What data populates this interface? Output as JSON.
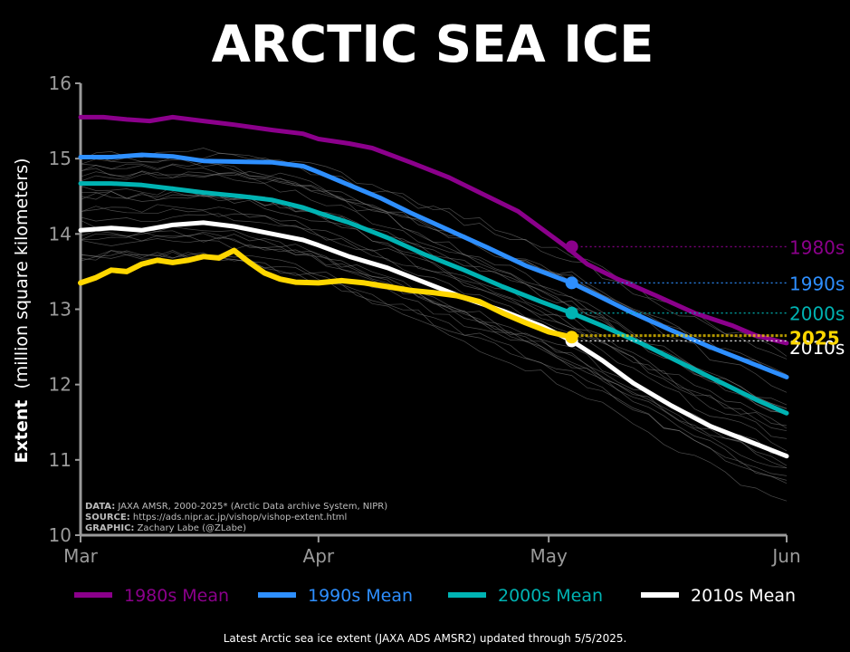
{
  "chart_data": {
    "type": "line",
    "title": "ARCTIC SEA ICE",
    "ylabel_bold": "Extent",
    "ylabel_rest": "(million square kilometers)",
    "xlabel": "",
    "x_ticks": [
      "Mar",
      "Apr",
      "May",
      "Jun"
    ],
    "x_tick_days": [
      0,
      31,
      61,
      92
    ],
    "xlim": [
      0,
      92
    ],
    "ylim": [
      10,
      16
    ],
    "y_ticks": [
      "10",
      "11",
      "12",
      "13",
      "14",
      "15",
      "16"
    ],
    "grid": false,
    "legend_position": "bottom",
    "credits": [
      {
        "bold": "DATA:",
        "text": "JAXA AMSR, 2000-2025* (Arctic Data archive System, NIPR)"
      },
      {
        "bold": "SOURCE:",
        "text": "https://ads.nipr.ac.jp/vishop/vishop-extent.html"
      },
      {
        "bold": "GRAPHIC:",
        "text": "Zachary Labe (@ZLabe)"
      }
    ],
    "series": [
      {
        "name": "1980s Mean",
        "end_label": "1980s",
        "color": "#8B008B",
        "legend": true,
        "days": [
          0,
          3,
          6,
          9,
          12,
          16,
          20,
          25,
          29,
          31,
          35,
          38,
          43,
          48,
          52,
          57,
          63,
          66,
          70,
          75,
          80,
          85,
          88,
          92
        ],
        "values": [
          15.55,
          15.55,
          15.52,
          15.5,
          15.55,
          15.5,
          15.45,
          15.38,
          15.33,
          15.26,
          15.2,
          15.14,
          14.95,
          14.75,
          14.55,
          14.3,
          13.85,
          13.6,
          13.4,
          13.18,
          12.95,
          12.78,
          12.65,
          12.55
        ],
        "marker_day": 64,
        "marker_value": 13.83,
        "dotted_value": 13.83,
        "end_label_value": 13.83
      },
      {
        "name": "1990s Mean",
        "end_label": "1990s",
        "color": "#2E8FFF",
        "legend": true,
        "days": [
          0,
          4,
          8,
          12,
          16,
          20,
          25,
          29,
          31,
          35,
          39,
          43,
          48,
          53,
          58,
          64,
          68,
          72,
          77,
          82,
          87,
          92
        ],
        "values": [
          15.02,
          15.02,
          15.05,
          15.03,
          14.97,
          14.96,
          14.95,
          14.9,
          14.82,
          14.65,
          14.48,
          14.28,
          14.05,
          13.82,
          13.58,
          13.35,
          13.15,
          12.95,
          12.72,
          12.5,
          12.3,
          12.1
        ],
        "marker_day": 64,
        "marker_value": 13.35,
        "dotted_value": 13.35,
        "end_label_value": 13.35
      },
      {
        "name": "2000s Mean",
        "end_label": "2000s",
        "color": "#00B3B3",
        "legend": true,
        "days": [
          0,
          4,
          8,
          12,
          16,
          21,
          25,
          29,
          31,
          35,
          40,
          45,
          50,
          55,
          60,
          64,
          68,
          73,
          78,
          83,
          88,
          92
        ],
        "values": [
          14.67,
          14.67,
          14.65,
          14.6,
          14.55,
          14.5,
          14.45,
          14.35,
          14.28,
          14.15,
          13.95,
          13.72,
          13.52,
          13.3,
          13.1,
          12.95,
          12.78,
          12.55,
          12.3,
          12.05,
          11.8,
          11.62
        ],
        "marker_day": 64,
        "marker_value": 12.95,
        "dotted_value": 12.95,
        "end_label_value": 12.95
      },
      {
        "name": "2010s Mean",
        "end_label": "2010s",
        "color": "#FFFFFF",
        "legend": true,
        "days": [
          0,
          4,
          8,
          12,
          16,
          20,
          25,
          29,
          31,
          35,
          40,
          45,
          50,
          55,
          60,
          64,
          68,
          72,
          77,
          82,
          87,
          92
        ],
        "values": [
          14.05,
          14.08,
          14.05,
          14.12,
          14.15,
          14.1,
          14.0,
          13.92,
          13.85,
          13.7,
          13.55,
          13.35,
          13.15,
          12.98,
          12.78,
          12.58,
          12.32,
          12.02,
          11.72,
          11.45,
          11.25,
          11.05
        ],
        "marker_day": 64,
        "marker_value": 12.58,
        "dotted_value": 12.58,
        "end_label_value": 12.5
      },
      {
        "name": "2025",
        "end_label": "2025",
        "color": "#FFD700",
        "legend": false,
        "days": [
          0,
          2,
          4,
          6,
          8,
          10,
          12,
          14,
          16,
          18,
          20,
          22,
          24,
          26,
          28,
          31,
          34,
          37,
          40,
          43,
          46,
          49,
          52,
          55,
          58,
          61,
          64
        ],
        "values": [
          13.35,
          13.42,
          13.52,
          13.5,
          13.6,
          13.65,
          13.62,
          13.65,
          13.7,
          13.68,
          13.78,
          13.62,
          13.48,
          13.4,
          13.36,
          13.35,
          13.38,
          13.35,
          13.3,
          13.25,
          13.22,
          13.18,
          13.1,
          12.95,
          12.82,
          12.7,
          12.63
        ],
        "marker_day": 64,
        "marker_value": 12.63,
        "dotted_value": 12.65,
        "end_label_value": 12.63
      }
    ],
    "background_years_note_color": "#8a8a8a"
  },
  "footer": "Latest Arctic sea ice extent (JAXA ADS AMSR2) updated through 5/5/2025."
}
